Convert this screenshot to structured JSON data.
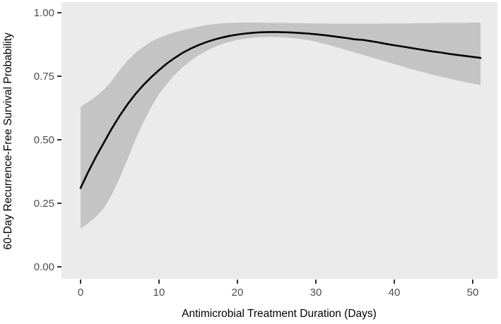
{
  "figure": {
    "background": "#FFFFFF",
    "panel_background": "#EBEBEB",
    "ribbon_color": "#C4C4C4",
    "line_color": "#000000",
    "tick_mark_color": "#333333",
    "tick_label_color": "#4D4D4D",
    "axis_title_color": "#000000"
  },
  "chart_data": {
    "type": "line",
    "title": "",
    "xlabel": "Antimicrobial Treatment Duration (Days)",
    "ylabel": "60-Day Recurrence-Free Survival Probability",
    "grid": false,
    "legend": false,
    "xlim": [
      -2.4,
      53.2
    ],
    "ylim": [
      -0.047,
      1.042
    ],
    "x_ticks": [
      {
        "value": 0,
        "label": "0"
      },
      {
        "value": 10,
        "label": "10"
      },
      {
        "value": 20,
        "label": "20"
      },
      {
        "value": 30,
        "label": "30"
      },
      {
        "value": 40,
        "label": "40"
      },
      {
        "value": 50,
        "label": "50"
      }
    ],
    "y_ticks": [
      {
        "value": 0.0,
        "label": "0.00"
      },
      {
        "value": 0.25,
        "label": "0.25"
      },
      {
        "value": 0.5,
        "label": "0.50"
      },
      {
        "value": 0.75,
        "label": "0.75"
      },
      {
        "value": 1.0,
        "label": "1.00"
      }
    ],
    "x": [
      0,
      1,
      2,
      3,
      4,
      5,
      6,
      7,
      8,
      9,
      10,
      11,
      12,
      13,
      14,
      15,
      16,
      17,
      18,
      19,
      20,
      21,
      22,
      23,
      24,
      25,
      26,
      27,
      28,
      29,
      30,
      31,
      32,
      33,
      34,
      35,
      36,
      37,
      38,
      39,
      40,
      41,
      42,
      43,
      44,
      45,
      46,
      47,
      48,
      49,
      50,
      51
    ],
    "series": [
      {
        "name": "fitted_survival_probability",
        "values": [
          0.31,
          0.375,
          0.435,
          0.49,
          0.545,
          0.595,
          0.64,
          0.68,
          0.715,
          0.746,
          0.774,
          0.8,
          0.822,
          0.842,
          0.858,
          0.872,
          0.884,
          0.894,
          0.902,
          0.909,
          0.914,
          0.918,
          0.921,
          0.923,
          0.924,
          0.924,
          0.923,
          0.922,
          0.92,
          0.918,
          0.915,
          0.912,
          0.908,
          0.904,
          0.9,
          0.895,
          0.893,
          0.888,
          0.883,
          0.877,
          0.872,
          0.867,
          0.862,
          0.857,
          0.852,
          0.847,
          0.843,
          0.838,
          0.834,
          0.83,
          0.826,
          0.822
        ]
      },
      {
        "name": "ci_upper",
        "values": [
          0.63,
          0.65,
          0.672,
          0.698,
          0.733,
          0.775,
          0.812,
          0.842,
          0.866,
          0.886,
          0.901,
          0.913,
          0.923,
          0.931,
          0.938,
          0.945,
          0.951,
          0.955,
          0.958,
          0.96,
          0.961,
          0.961,
          0.961,
          0.961,
          0.96,
          0.96,
          0.96,
          0.959,
          0.959,
          0.958,
          0.958,
          0.958,
          0.957,
          0.957,
          0.957,
          0.957,
          0.957,
          0.957,
          0.957,
          0.958,
          0.958,
          0.958,
          0.958,
          0.959,
          0.959,
          0.959,
          0.96,
          0.96,
          0.96,
          0.96,
          0.961,
          0.961
        ]
      },
      {
        "name": "ci_lower",
        "values": [
          0.15,
          0.172,
          0.198,
          0.232,
          0.285,
          0.35,
          0.425,
          0.5,
          0.568,
          0.628,
          0.68,
          0.72,
          0.755,
          0.785,
          0.81,
          0.831,
          0.849,
          0.864,
          0.876,
          0.886,
          0.893,
          0.898,
          0.902,
          0.904,
          0.905,
          0.904,
          0.903,
          0.9,
          0.897,
          0.892,
          0.886,
          0.878,
          0.87,
          0.861,
          0.852,
          0.843,
          0.834,
          0.825,
          0.816,
          0.807,
          0.798,
          0.789,
          0.78,
          0.771,
          0.763,
          0.755,
          0.748,
          0.741,
          0.734,
          0.727,
          0.721,
          0.715
        ]
      }
    ]
  }
}
